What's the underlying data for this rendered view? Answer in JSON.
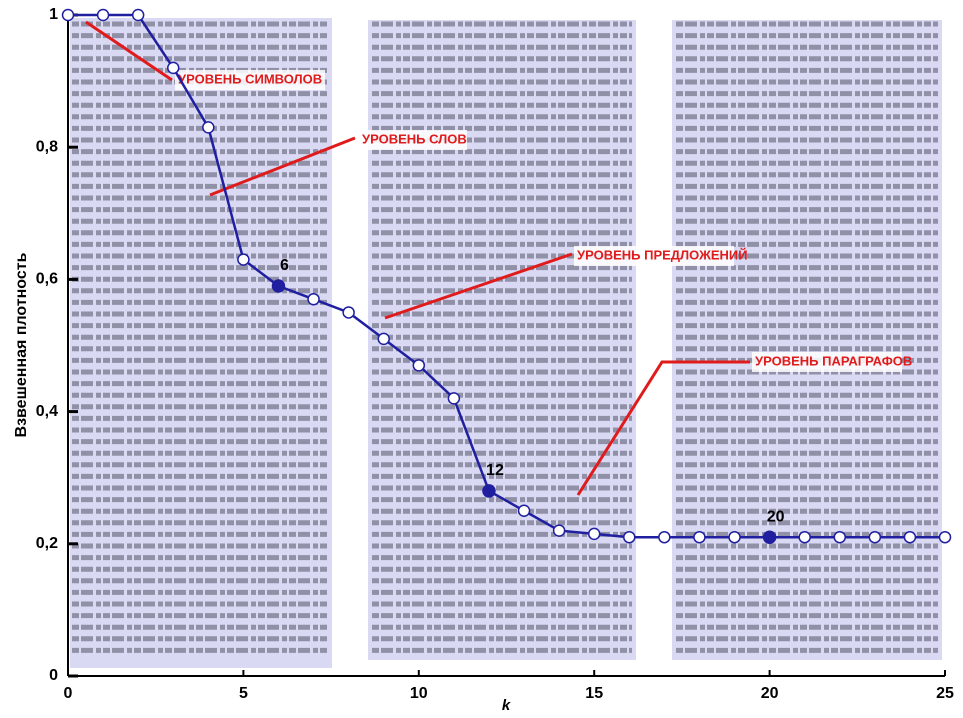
{
  "chart_data": {
    "type": "line",
    "x_label": "k",
    "y_label": "Взвешенная плотность",
    "x": [
      0,
      1,
      2,
      3,
      4,
      5,
      6,
      7,
      8,
      9,
      10,
      11,
      12,
      13,
      14,
      15,
      16,
      17,
      18,
      19,
      20,
      21,
      22,
      23,
      24,
      25
    ],
    "series": [
      {
        "color": "#1f1fa0",
        "values": [
          1,
          1,
          1,
          0.92,
          0.83,
          0.63,
          0.59,
          0.57,
          0.55,
          0.51,
          0.47,
          0.42,
          0.28,
          0.25,
          0.22,
          0.215,
          0.21,
          0.21,
          0.21,
          0.21,
          0.21,
          0.21,
          0.21,
          0.21,
          0.21,
          0.21
        ]
      }
    ],
    "highlight": [
      6,
      12,
      20
    ],
    "annotations": [
      "УРОВЕНЬ СИМВОЛОВ",
      "УРОВЕНЬ СЛОВ",
      "УРОВЕНЬ ПРЕДЛОЖЕНИЙ",
      "УРОВЕНЬ ПАРАГРАФОВ"
    ],
    "annotation_color": "#e01b1b",
    "xlim": [
      0,
      25
    ],
    "ylim": [
      0,
      1
    ],
    "xticks": [
      0,
      5,
      10,
      15,
      20,
      25
    ],
    "yticks": [
      0,
      {
        "value": 0.2,
        "label": "0,2"
      },
      {
        "value": 0.4,
        "label": "0,4"
      },
      {
        "value": 0.6,
        "label": "0,6"
      },
      {
        "value": 0.8,
        "label": "0,8"
      },
      1
    ]
  }
}
